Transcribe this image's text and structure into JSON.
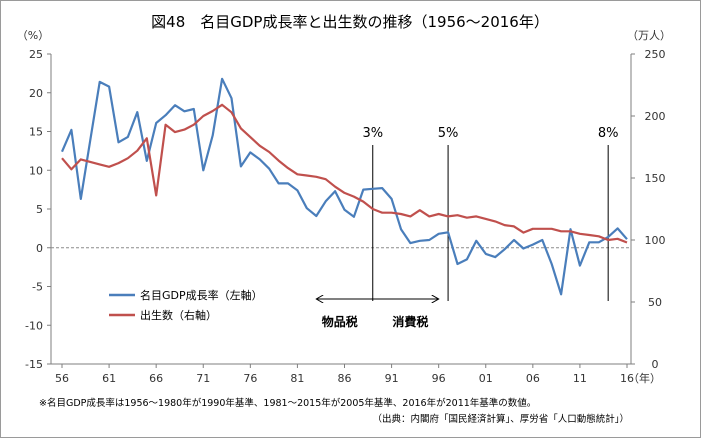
{
  "chart_data": {
    "type": "line",
    "title": "図48　名目GDP成長率と出生数の推移（1956〜2016年）",
    "left_unit": "（%）",
    "right_unit": "（万人）",
    "x_unit": "（年）",
    "left_axis": {
      "min": -15,
      "max": 25,
      "step": 5
    },
    "right_axis": {
      "min": 0,
      "max": 250,
      "step": 50
    },
    "x_ticks": [
      "56",
      "61",
      "66",
      "71",
      "76",
      "81",
      "86",
      "91",
      "96",
      "01",
      "06",
      "11",
      "16"
    ],
    "x_tick_years": [
      1956,
      1961,
      1966,
      1971,
      1976,
      1981,
      1986,
      1991,
      1996,
      2001,
      2006,
      2011,
      2016
    ],
    "grid": false,
    "legend_position": "bottom-left",
    "series": [
      {
        "name": "名目GDP成長率（左軸）",
        "axis": "left",
        "color": "#4a7ebb",
        "x": [
          1956,
          1957,
          1958,
          1959,
          1960,
          1961,
          1962,
          1963,
          1964,
          1965,
          1966,
          1967,
          1968,
          1969,
          1970,
          1971,
          1972,
          1973,
          1974,
          1975,
          1976,
          1977,
          1978,
          1979,
          1980,
          1981,
          1982,
          1983,
          1984,
          1985,
          1986,
          1987,
          1988,
          1989,
          1990,
          1991,
          1992,
          1993,
          1994,
          1995,
          1996,
          1997,
          1998,
          1999,
          2000,
          2001,
          2002,
          2003,
          2004,
          2005,
          2006,
          2007,
          2008,
          2009,
          2010,
          2011,
          2012,
          2013,
          2014,
          2015,
          2016
        ],
        "y": [
          12.4,
          15.2,
          6.3,
          13.9,
          21.4,
          20.8,
          13.6,
          14.3,
          17.5,
          11.2,
          16.1,
          17.1,
          18.4,
          17.6,
          17.9,
          10.0,
          14.5,
          21.8,
          19.3,
          10.5,
          12.3,
          11.4,
          10.2,
          8.3,
          8.3,
          7.4,
          5.1,
          4.1,
          6.0,
          7.3,
          4.9,
          4.0,
          7.5,
          7.6,
          7.7,
          6.3,
          2.4,
          0.6,
          0.9,
          1.0,
          1.8,
          2.0,
          -2.1,
          -1.5,
          0.9,
          -0.8,
          -1.2,
          -0.2,
          1.0,
          -0.1,
          0.4,
          1.0,
          -2.1,
          -6.0,
          2.4,
          -2.3,
          0.7,
          0.7,
          1.4,
          2.5,
          1.1
        ]
      },
      {
        "name": "出生数（右軸）",
        "axis": "right",
        "color": "#c0504d",
        "x": [
          1956,
          1957,
          1958,
          1959,
          1960,
          1961,
          1962,
          1963,
          1964,
          1965,
          1966,
          1967,
          1968,
          1969,
          1970,
          1971,
          1972,
          1973,
          1974,
          1975,
          1976,
          1977,
          1978,
          1979,
          1980,
          1981,
          1982,
          1983,
          1984,
          1985,
          1986,
          1987,
          1988,
          1989,
          1990,
          1991,
          1992,
          1993,
          1994,
          1995,
          1996,
          1997,
          1998,
          1999,
          2000,
          2001,
          2002,
          2003,
          2004,
          2005,
          2006,
          2007,
          2008,
          2009,
          2010,
          2011,
          2012,
          2013,
          2014,
          2015,
          2016
        ],
        "y": [
          166,
          157,
          165,
          163,
          161,
          159,
          162,
          166,
          172,
          182,
          136,
          193,
          187,
          189,
          193,
          200,
          204,
          209,
          203,
          190,
          183,
          176,
          171,
          164,
          158,
          153,
          152,
          151,
          149,
          143,
          138,
          135,
          131,
          125,
          122,
          122,
          121,
          119,
          124,
          119,
          121,
          119,
          120,
          118,
          119,
          117,
          115,
          112,
          111,
          106,
          109,
          109,
          109,
          107,
          107,
          105,
          104,
          103,
          100,
          101,
          98
        ]
      }
    ],
    "annotations": {
      "tax_3pct": {
        "label": "3%",
        "year": 1989
      },
      "tax_5pct": {
        "label": "5%",
        "year": 1997
      },
      "tax_8pct": {
        "label": "8%",
        "year": 2014
      },
      "arrow_left_label": "物品税",
      "arrow_right_label": "消費税",
      "arrow_from_year": 1983,
      "arrow_to_year": 1996
    },
    "footnote_1": "※名目GDP成長率は1956〜1980年が1990年基準、1981〜2015年が2005年基準、2016年が2011年基準の数値。",
    "footnote_2": "（出典：内閣府「国民経済計算」、厚労省「人口動態統計」）"
  }
}
